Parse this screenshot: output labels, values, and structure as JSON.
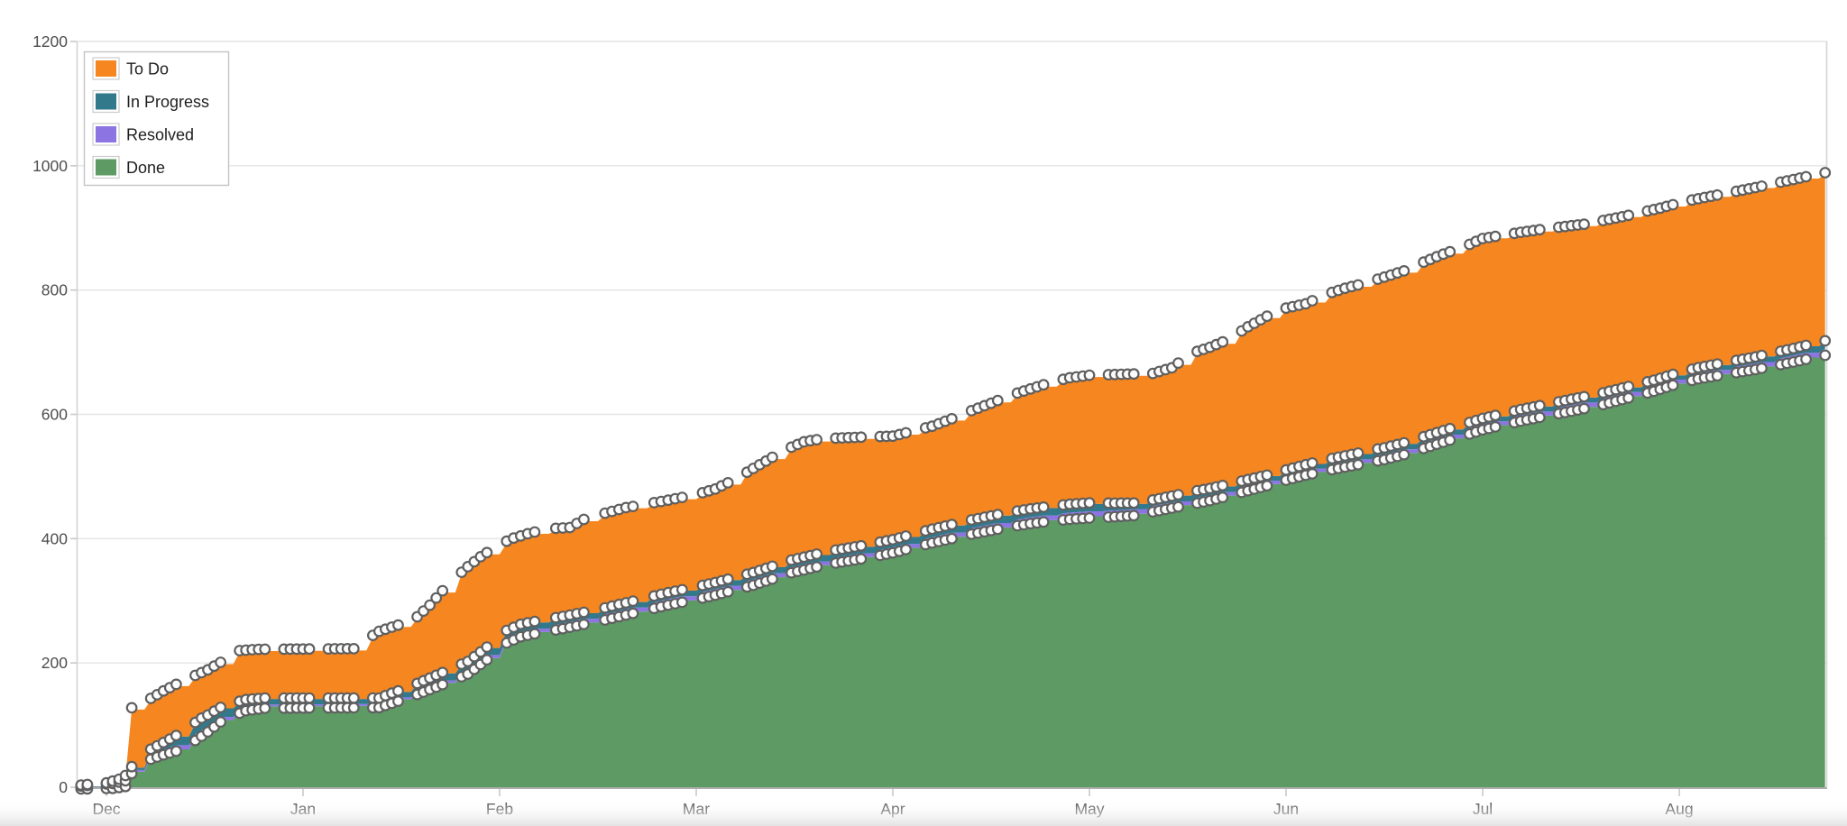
{
  "chart_data": {
    "type": "area",
    "subtype": "cumulative-flow-stacked",
    "title": "",
    "legend_position": "top-left",
    "grid": "horizontal-only",
    "legend": [
      {
        "label": "To Do",
        "color": "#f6861f"
      },
      {
        "label": "In Progress",
        "color": "#33798c"
      },
      {
        "label": "Resolved",
        "color": "#8c75e2"
      },
      {
        "label": "Done",
        "color": "#5d9a64"
      }
    ],
    "stack_order_bottom_to_top": [
      "Done",
      "Resolved",
      "In Progress",
      "To Do"
    ],
    "y_axis": {
      "min": 0,
      "max": 1200,
      "tick_step": 200,
      "ticks": [
        0,
        200,
        400,
        600,
        800,
        1000,
        1200
      ]
    },
    "x_axis": {
      "unit": "days-from-dec-1",
      "day_min": -4.7,
      "day_max": 266,
      "month_starts": [
        0,
        31,
        62,
        90,
        121,
        151,
        182,
        212,
        243,
        274
      ],
      "months": [
        {
          "label": "Dec",
          "day": 0
        },
        {
          "label": "Jan",
          "day": 31
        },
        {
          "label": "Feb",
          "day": 62
        },
        {
          "label": "Mar",
          "day": 90
        },
        {
          "label": "Apr",
          "day": 121
        },
        {
          "label": "May",
          "day": 151
        },
        {
          "label": "Jun",
          "day": 182
        },
        {
          "label": "Jul",
          "day": 212
        },
        {
          "label": "Aug",
          "day": 243
        }
      ]
    },
    "series_keypoints": {
      "total_created": [
        [
          -4.7,
          0
        ],
        [
          0,
          4
        ],
        [
          2,
          10
        ],
        [
          3,
          16
        ],
        [
          4,
          125
        ],
        [
          5,
          132
        ],
        [
          7,
          140
        ],
        [
          9,
          152
        ],
        [
          12,
          168
        ],
        [
          14,
          177
        ],
        [
          16,
          186
        ],
        [
          18,
          198
        ],
        [
          20,
          212
        ],
        [
          21,
          217
        ],
        [
          24,
          219
        ],
        [
          39,
          220
        ],
        [
          41,
          235
        ],
        [
          43,
          248
        ],
        [
          46,
          258
        ],
        [
          48,
          262
        ],
        [
          51,
          290
        ],
        [
          54,
          325
        ],
        [
          57,
          352
        ],
        [
          59,
          368
        ],
        [
          62,
          388
        ],
        [
          64,
          398
        ],
        [
          66,
          405
        ],
        [
          69,
          413
        ],
        [
          72,
          415
        ],
        [
          74,
          428
        ],
        [
          77,
          438
        ],
        [
          80,
          447
        ],
        [
          83,
          453
        ],
        [
          86,
          459
        ],
        [
          90,
          468
        ],
        [
          93,
          477
        ],
        [
          96,
          492
        ],
        [
          99,
          510
        ],
        [
          102,
          528
        ],
        [
          104,
          540
        ],
        [
          107,
          553
        ],
        [
          110,
          558
        ],
        [
          115,
          560
        ],
        [
          121,
          562
        ],
        [
          124,
          570
        ],
        [
          127,
          578
        ],
        [
          130,
          590
        ],
        [
          133,
          603
        ],
        [
          136,
          615
        ],
        [
          139,
          628
        ],
        [
          142,
          638
        ],
        [
          145,
          648
        ],
        [
          148,
          656
        ],
        [
          151,
          660
        ],
        [
          161,
          663
        ],
        [
          164,
          672
        ],
        [
          167,
          695
        ],
        [
          170,
          705
        ],
        [
          173,
          718
        ],
        [
          176,
          738
        ],
        [
          179,
          755
        ],
        [
          182,
          768
        ],
        [
          185,
          775
        ],
        [
          188,
          790
        ],
        [
          191,
          800
        ],
        [
          194,
          808
        ],
        [
          197,
          818
        ],
        [
          200,
          828
        ],
        [
          203,
          842
        ],
        [
          206,
          855
        ],
        [
          209,
          866
        ],
        [
          212,
          880
        ],
        [
          218,
          890
        ],
        [
          223,
          897
        ],
        [
          228,
          903
        ],
        [
          234,
          915
        ],
        [
          240,
          929
        ],
        [
          244,
          940
        ],
        [
          250,
          952
        ],
        [
          255,
          962
        ],
        [
          261,
          975
        ],
        [
          266,
          986
        ]
      ],
      "done": [
        [
          -4.7,
          0
        ],
        [
          1,
          1
        ],
        [
          3,
          4
        ],
        [
          4,
          25
        ],
        [
          5,
          38
        ],
        [
          6,
          44
        ],
        [
          7,
          48
        ],
        [
          9,
          55
        ],
        [
          12,
          64
        ],
        [
          14,
          78
        ],
        [
          16,
          92
        ],
        [
          18,
          108
        ],
        [
          20,
          118
        ],
        [
          22,
          126
        ],
        [
          25,
          130
        ],
        [
          43,
          131
        ],
        [
          45,
          138
        ],
        [
          48,
          148
        ],
        [
          51,
          160
        ],
        [
          54,
          172
        ],
        [
          57,
          185
        ],
        [
          60,
          208
        ],
        [
          62,
          230
        ],
        [
          65,
          245
        ],
        [
          68,
          252
        ],
        [
          71,
          258
        ],
        [
          74,
          265
        ],
        [
          77,
          272
        ],
        [
          80,
          280
        ],
        [
          83,
          288
        ],
        [
          86,
          296
        ],
        [
          90,
          305
        ],
        [
          93,
          312
        ],
        [
          96,
          320
        ],
        [
          99,
          328
        ],
        [
          102,
          338
        ],
        [
          105,
          348
        ],
        [
          108,
          355
        ],
        [
          111,
          362
        ],
        [
          114,
          367
        ],
        [
          117,
          372
        ],
        [
          121,
          380
        ],
        [
          124,
          388
        ],
        [
          127,
          396
        ],
        [
          130,
          403
        ],
        [
          133,
          410
        ],
        [
          136,
          416
        ],
        [
          139,
          422
        ],
        [
          142,
          427
        ],
        [
          145,
          431
        ],
        [
          148,
          434
        ],
        [
          151,
          436
        ],
        [
          155,
          438
        ],
        [
          158,
          440
        ],
        [
          161,
          446
        ],
        [
          164,
          452
        ],
        [
          167,
          458
        ],
        [
          170,
          464
        ],
        [
          173,
          472
        ],
        [
          176,
          480
        ],
        [
          179,
          488
        ],
        [
          182,
          497
        ],
        [
          185,
          505
        ],
        [
          188,
          512
        ],
        [
          191,
          518
        ],
        [
          194,
          524
        ],
        [
          197,
          530
        ],
        [
          200,
          538
        ],
        [
          203,
          548
        ],
        [
          206,
          558
        ],
        [
          209,
          568
        ],
        [
          212,
          578
        ],
        [
          215,
          585
        ],
        [
          218,
          592
        ],
        [
          221,
          598
        ],
        [
          224,
          604
        ],
        [
          227,
          610
        ],
        [
          230,
          616
        ],
        [
          233,
          624
        ],
        [
          236,
          632
        ],
        [
          239,
          640
        ],
        [
          243,
          653
        ],
        [
          246,
          660
        ],
        [
          249,
          665
        ],
        [
          252,
          670
        ],
        [
          255,
          675
        ],
        [
          258,
          681
        ],
        [
          261,
          687
        ],
        [
          266,
          698
        ]
      ],
      "resolved_thickness": [
        [
          -4.7,
          0
        ],
        [
          3,
          2
        ],
        [
          6,
          4
        ],
        [
          10,
          6
        ],
        [
          13,
          8
        ],
        [
          16,
          6
        ],
        [
          20,
          4
        ],
        [
          25,
          3
        ],
        [
          43,
          3
        ],
        [
          55,
          4
        ],
        [
          62,
          5
        ],
        [
          75,
          6
        ],
        [
          90,
          7
        ],
        [
          105,
          6
        ],
        [
          121,
          6
        ],
        [
          135,
          7
        ],
        [
          151,
          8
        ],
        [
          165,
          6
        ],
        [
          182,
          5
        ],
        [
          200,
          6
        ],
        [
          212,
          6
        ],
        [
          228,
          7
        ],
        [
          243,
          6
        ],
        [
          255,
          7
        ],
        [
          266,
          8
        ]
      ],
      "in_progress_thickness": [
        [
          -4.7,
          0
        ],
        [
          3,
          3
        ],
        [
          6,
          6
        ],
        [
          9,
          10
        ],
        [
          12,
          16
        ],
        [
          15,
          18
        ],
        [
          18,
          14
        ],
        [
          22,
          10
        ],
        [
          25,
          9
        ],
        [
          43,
          8
        ],
        [
          55,
          12
        ],
        [
          62,
          11
        ],
        [
          75,
          9
        ],
        [
          90,
          9
        ],
        [
          105,
          10
        ],
        [
          121,
          11
        ],
        [
          135,
          12
        ],
        [
          151,
          12
        ],
        [
          160,
          8
        ],
        [
          168,
          10
        ],
        [
          182,
          7
        ],
        [
          196,
          9
        ],
        [
          212,
          8
        ],
        [
          228,
          8
        ],
        [
          243,
          7
        ],
        [
          255,
          9
        ],
        [
          266,
          11
        ]
      ]
    },
    "markers": {
      "shape": "circle",
      "radius": 5.3,
      "fill": "#fcfcfc",
      "stroke": "#5f5f5f",
      "stroke_width": 2.2,
      "on_series": [
        "total_created",
        "in_progress_top",
        "done_top"
      ],
      "skip_weekends": true
    },
    "style": {
      "background": "#ffffff",
      "grid_color": "#e4e4e4",
      "plot_border_color": "#d4d4d4",
      "axis_line_color": "#a3a3a3",
      "tick_color": "#c9c9c9",
      "axis_label_color": "#4d4d4d",
      "legend_border_color": "#c4c4c4",
      "legend_text_color": "#1f1f1f",
      "legend_swatch_border": "#cccccc",
      "page_fade_color": "#e2e2e2"
    }
  }
}
